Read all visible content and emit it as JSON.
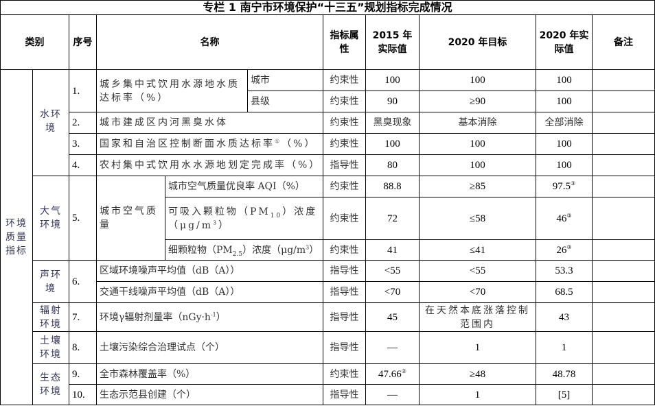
{
  "title": "专栏 1  南宁市环境保护“十三五”规划指标完成情况",
  "header": {
    "category": "类别",
    "seq": "序号",
    "name": "名称",
    "attr": "指标属性",
    "y2015": "2015 年实际值",
    "target2020": "2020 年目标",
    "y2020": "2020 年实际值",
    "remark": "备注"
  },
  "main_category": "环境质量指标",
  "groups": {
    "water": "水环境",
    "air": "大气环境",
    "noise": "声环境",
    "radiation": "辐射环境",
    "soil": "土壤环境",
    "eco": "生态环境"
  },
  "rows": [
    {
      "seq": "1.",
      "name": "城乡集中式饮用水源地水质达标率（%）",
      "sub": "城市",
      "attr": "约束性",
      "v2015": "100",
      "target": "100",
      "v2020": "100",
      "remark": ""
    },
    {
      "sub": "县级",
      "attr": "约束性",
      "v2015": "90",
      "target": "≥90",
      "v2020": "100",
      "remark": ""
    },
    {
      "seq": "2.",
      "name": "城市建成区内河黑臭水体",
      "attr": "约束性",
      "v2015": "黑臭现象",
      "target": "基本消除",
      "v2020": "全部消除",
      "remark": ""
    },
    {
      "seq": "3.",
      "name": "国家和自治区控制断面水质达标率",
      "note": "①",
      "unit": "（%）",
      "attr": "约束性",
      "v2015": "100",
      "target": "100",
      "v2020": "100",
      "remark": ""
    },
    {
      "seq": "4.",
      "name": "农村集中式饮用水水源地划定完成率（%）",
      "attr": "指导性",
      "v2015": "80",
      "target": "100",
      "v2020": "100",
      "remark": ""
    },
    {
      "seq": "5.",
      "name": "城市空气质量",
      "sub": "城市空气质量优良率 AQI（%）",
      "attr": "约束性",
      "v2015": "88.8",
      "target": "≥85",
      "v2020": "97.5",
      "note2020": "③",
      "remark": ""
    },
    {
      "sub_a": "可吸入颗粒物（PM",
      "sub_idx": "10",
      "sub_b": "）浓度（μg/m",
      "sub_exp": "3",
      "sub_c": "）",
      "attr": "约束性",
      "v2015": "72",
      "target": "≤58",
      "v2020": "46",
      "note2020": "③",
      "remark": ""
    },
    {
      "sub_a": "细颗粒物（PM",
      "sub_idx": "2.5",
      "sub_b": "）浓度（μg/m",
      "sub_exp": "3",
      "sub_c": "）",
      "attr": "约束性",
      "v2015": "41",
      "target": "≤41",
      "v2020": "26",
      "note2020": "③",
      "remark": ""
    },
    {
      "seq": "6.",
      "name": "区域环境噪声平均值（dB（A））",
      "attr": "指导性",
      "v2015": "<55",
      "target": "<55",
      "v2020": "53.3",
      "remark": ""
    },
    {
      "name": "交通干线噪声平均值（dB（A））",
      "attr": "指导性",
      "v2015": "<70",
      "target": "<70",
      "v2020": "68.5",
      "remark": ""
    },
    {
      "seq": "7.",
      "name": "环境γ辐射剂量率（nGy·h",
      "exp": "-1",
      "name_end": "）",
      "attr": "指导性",
      "v2015": "45",
      "target": "在天然本底涨落控制范围内",
      "v2020": "43",
      "remark": ""
    },
    {
      "seq": "8.",
      "name": "土壤污染综合治理试点（个）",
      "attr": "指导性",
      "v2015": "—",
      "target": "1",
      "v2020": "1",
      "remark": ""
    },
    {
      "seq": "9.",
      "name": "全市森林覆盖率（%）",
      "attr": "约束性",
      "v2015": "47.66",
      "note2015": "②",
      "target": "≥48",
      "v2020": "48.78",
      "remark": ""
    },
    {
      "seq": "10.",
      "name": "生态示范县创建（个）",
      "attr": "指导性",
      "v2015": "—",
      "target": "1",
      "v2020": "[5]",
      "remark": ""
    }
  ]
}
